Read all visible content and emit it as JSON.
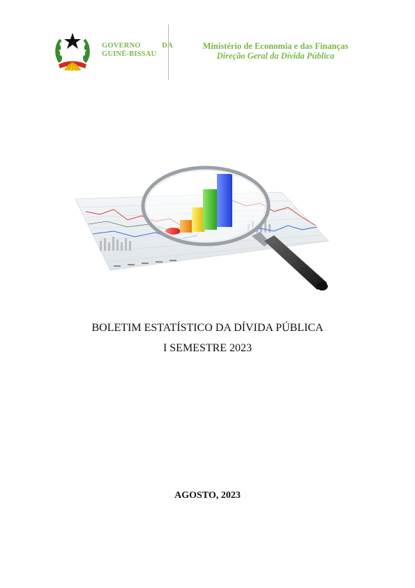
{
  "header": {
    "government_line1_a": "GOVERNO",
    "government_line1_b": "DA",
    "government_line2": "GUINÉ-BISSAU",
    "ministry": "Ministério de Economia e das Finanças",
    "directorate": "Direção Geral da Dívida Pública",
    "emblem_icon": "coat-of-arms-guinea-bissau",
    "accent_color": "#7ab648"
  },
  "cover": {
    "illustration_icon": "magnifier-over-financial-chart",
    "title_line1": "BOLETIM ESTATÍSTICO DA DÍVIDA PÚBLICA",
    "title_line2": "I SEMESTRE 2023",
    "date": "AGOSTO, 2023"
  }
}
